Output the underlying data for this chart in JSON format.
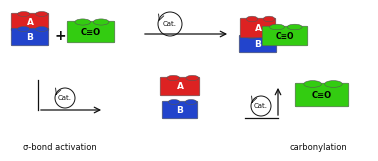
{
  "bg_color": "#ffffff",
  "red_color": "#dd2222",
  "blue_color": "#2244cc",
  "green_color": "#33cc11",
  "dark_color": "#111111",
  "text_white": "#ffffff",
  "text_dark": "#111111",
  "label_A": "A",
  "label_B": "B",
  "label_CO": "C≡O",
  "label_cat": "Cat.",
  "label_sigma": "σ-bond activation",
  "label_carbonylation": "carbonylation"
}
